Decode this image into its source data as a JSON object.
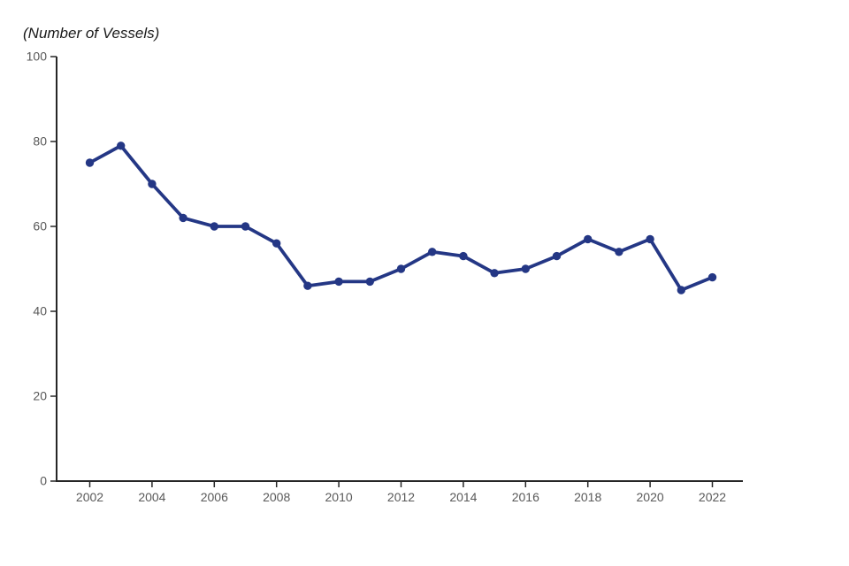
{
  "page": {
    "background_color": "#ffffff"
  },
  "chart_data": {
    "type": "line",
    "title": "(Number of Vessels)",
    "x": [
      2002,
      2003,
      2004,
      2005,
      2006,
      2007,
      2008,
      2009,
      2010,
      2011,
      2012,
      2013,
      2014,
      2015,
      2016,
      2017,
      2018,
      2019,
      2020,
      2021,
      2022
    ],
    "values": [
      75,
      79,
      70,
      62,
      60,
      60,
      56,
      46,
      47,
      47,
      50,
      54,
      53,
      49,
      50,
      53,
      57,
      54,
      57,
      45,
      48
    ],
    "xlabel": "",
    "ylabel": "",
    "ylim": [
      0,
      100
    ],
    "yticks": [
      0,
      20,
      40,
      60,
      80,
      100
    ],
    "xticks": [
      2002,
      2004,
      2006,
      2008,
      2010,
      2012,
      2014,
      2016,
      2018,
      2020,
      2022
    ],
    "grid": false,
    "legend": "none",
    "marker": "circle",
    "line_color": "#243785",
    "axis_color": "#262626",
    "tick_label_color": "#595959"
  }
}
